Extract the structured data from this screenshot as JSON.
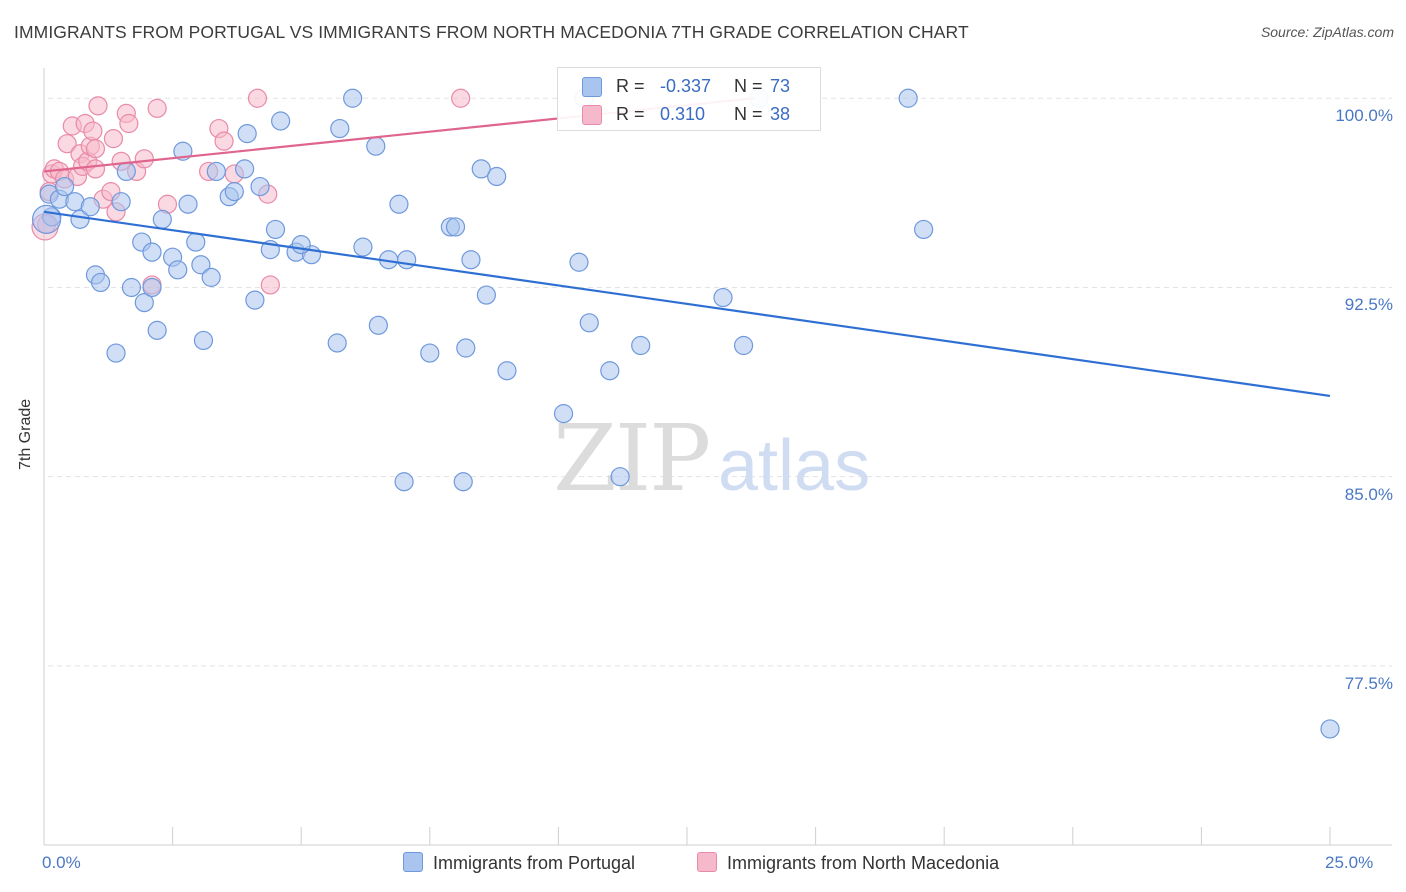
{
  "title": "IMMIGRANTS FROM PORTUGAL VS IMMIGRANTS FROM NORTH MACEDONIA 7TH GRADE CORRELATION CHART",
  "source": "Source: ZipAtlas.com",
  "colors": {
    "blue_fill": "#a9c4ef",
    "blue_stroke": "#6f99dc",
    "blue_line": "#2f6fd3",
    "pink_fill": "#f6b9cb",
    "pink_stroke": "#e98aa8",
    "pink_line": "#e0658e",
    "grid": "#e3e3e3",
    "tick_label": "#4a78c4"
  },
  "stats": {
    "blue": {
      "r_label": "R =",
      "r_value": "-0.337",
      "n_label": "N =",
      "n_value": "73"
    },
    "pink": {
      "r_label": "R =",
      "r_value": "0.310",
      "n_label": "N =",
      "n_value": "38"
    }
  },
  "legend": {
    "blue_label": "Immigrants from Portugal",
    "pink_label": "Immigrants from North Macedonia"
  },
  "chart_data": {
    "type": "scatter",
    "title": "IMMIGRANTS FROM PORTUGAL VS IMMIGRANTS FROM NORTH MACEDONIA 7TH GRADE CORRELATION CHART",
    "xlabel": "",
    "ylabel": "7th Grade",
    "xlim": [
      0,
      25
    ],
    "ylim": [
      70.4,
      101.2
    ],
    "x_tick_labels": [
      "0.0%",
      "25.0%"
    ],
    "y_ticks": [
      100.0,
      92.5,
      85.0,
      77.5
    ],
    "y_tick_labels": [
      "100.0%",
      "92.5%",
      "85.0%",
      "77.5%"
    ],
    "grid": true,
    "legend_position": "bottom-center",
    "watermark": {
      "part1": "ZIP",
      "part2": "atlas"
    },
    "series": [
      {
        "name": "Immigrants from Portugal",
        "color": "#a9c4ef",
        "trend": [
          [
            0,
            95.5
          ],
          [
            25,
            88.2
          ]
        ],
        "points": [
          [
            0.1,
            96.2
          ],
          [
            0.3,
            96.0
          ],
          [
            0.4,
            96.5
          ],
          [
            0.6,
            95.9
          ],
          [
            0.7,
            95.2
          ],
          [
            0.9,
            95.7
          ],
          [
            1.0,
            93.0
          ],
          [
            1.1,
            92.7
          ],
          [
            1.4,
            89.9
          ],
          [
            1.5,
            95.9
          ],
          [
            1.6,
            97.1
          ],
          [
            1.7,
            92.5
          ],
          [
            1.9,
            94.3
          ],
          [
            1.95,
            91.9
          ],
          [
            2.1,
            92.5
          ],
          [
            2.2,
            90.8
          ],
          [
            2.3,
            95.2
          ],
          [
            2.5,
            93.7
          ],
          [
            2.6,
            93.2
          ],
          [
            2.7,
            97.9
          ],
          [
            2.8,
            95.8
          ],
          [
            2.95,
            94.3
          ],
          [
            3.05,
            93.4
          ],
          [
            3.1,
            90.4
          ],
          [
            3.25,
            92.9
          ],
          [
            3.35,
            97.1
          ],
          [
            3.6,
            96.1
          ],
          [
            3.7,
            96.3
          ],
          [
            3.9,
            97.2
          ],
          [
            3.95,
            98.6
          ],
          [
            4.1,
            92.0
          ],
          [
            4.2,
            96.5
          ],
          [
            4.4,
            94.0
          ],
          [
            4.5,
            94.8
          ],
          [
            4.6,
            99.1
          ],
          [
            4.9,
            93.9
          ],
          [
            5.2,
            93.8
          ],
          [
            5.7,
            90.3
          ],
          [
            5.75,
            98.8
          ],
          [
            6.0,
            100.0
          ],
          [
            6.2,
            94.1
          ],
          [
            6.45,
            98.1
          ],
          [
            6.7,
            93.6
          ],
          [
            6.5,
            91.0
          ],
          [
            7.0,
            84.8
          ],
          [
            7.05,
            93.6
          ],
          [
            7.5,
            89.9
          ],
          [
            7.9,
            94.9
          ],
          [
            8.15,
            84.8
          ],
          [
            8.2,
            90.1
          ],
          [
            8.3,
            93.6
          ],
          [
            8.5,
            97.2
          ],
          [
            8.8,
            96.9
          ],
          [
            8.6,
            92.2
          ],
          [
            9.0,
            89.2
          ],
          [
            10.1,
            87.5
          ],
          [
            10.4,
            93.5
          ],
          [
            10.6,
            91.1
          ],
          [
            11.0,
            89.2
          ],
          [
            11.2,
            85.0
          ],
          [
            11.6,
            90.2
          ],
          [
            13.2,
            92.1
          ],
          [
            13.6,
            90.2
          ],
          [
            13.9,
            100.0
          ],
          [
            16.8,
            100.0
          ],
          [
            17.1,
            94.8
          ],
          [
            25.0,
            75.0
          ],
          [
            0.15,
            95.3
          ],
          [
            2.1,
            93.9
          ],
          [
            5.0,
            94.2
          ],
          [
            6.9,
            95.8
          ],
          [
            8.0,
            94.9
          ],
          [
            10.5,
            100.0
          ]
        ]
      },
      {
        "name": "Immigrants from North Macedonia",
        "color": "#f6b9cb",
        "trend": [
          [
            0,
            97.1
          ],
          [
            13.8,
            100.0
          ]
        ],
        "points": [
          [
            0.05,
            95.0
          ],
          [
            0.1,
            96.3
          ],
          [
            0.15,
            97.0
          ],
          [
            0.2,
            97.2
          ],
          [
            0.3,
            97.1
          ],
          [
            0.4,
            96.8
          ],
          [
            0.45,
            98.2
          ],
          [
            0.55,
            98.9
          ],
          [
            0.65,
            96.9
          ],
          [
            0.7,
            97.8
          ],
          [
            0.75,
            97.3
          ],
          [
            0.8,
            99.0
          ],
          [
            0.85,
            97.5
          ],
          [
            0.9,
            98.1
          ],
          [
            0.95,
            98.7
          ],
          [
            1.0,
            98.0
          ],
          [
            1.05,
            99.7
          ],
          [
            1.15,
            96.0
          ],
          [
            1.3,
            96.3
          ],
          [
            1.35,
            98.4
          ],
          [
            1.4,
            95.5
          ],
          [
            1.5,
            97.5
          ],
          [
            1.6,
            99.4
          ],
          [
            1.65,
            99.0
          ],
          [
            1.8,
            97.1
          ],
          [
            1.95,
            97.6
          ],
          [
            2.1,
            92.6
          ],
          [
            2.2,
            99.6
          ],
          [
            2.4,
            95.8
          ],
          [
            3.2,
            97.1
          ],
          [
            3.4,
            98.8
          ],
          [
            3.5,
            98.3
          ],
          [
            3.7,
            97.0
          ],
          [
            4.15,
            100.0
          ],
          [
            4.35,
            96.2
          ],
          [
            4.4,
            92.6
          ],
          [
            8.1,
            100.0
          ],
          [
            1.0,
            97.2
          ]
        ]
      }
    ]
  }
}
